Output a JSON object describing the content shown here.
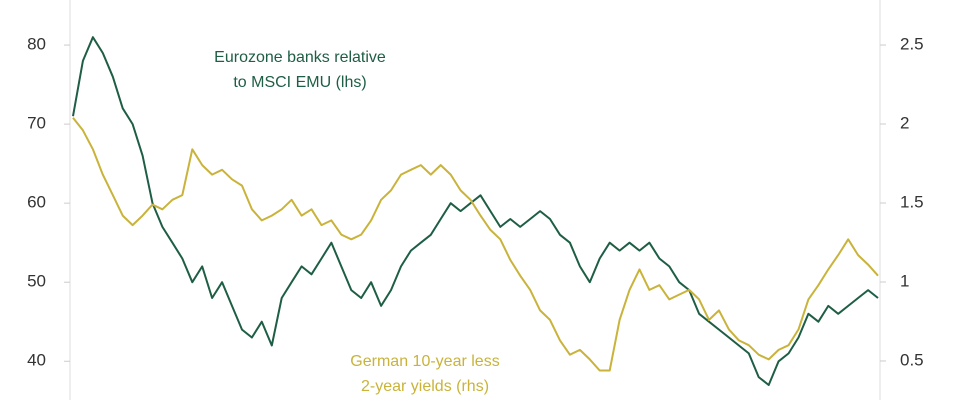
{
  "chart_data": {
    "type": "line",
    "annotations": [
      {
        "lines": [
          "Eurozone banks relative",
          "to MSCI EMU (lhs)"
        ],
        "color": "#1e5e45"
      },
      {
        "lines": [
          "German 10-year less",
          "2-year yields (rhs)"
        ],
        "color": "#c9b33a"
      }
    ],
    "ylim": [
      35.1,
      85.7
    ],
    "yticks": [
      40,
      50,
      60,
      70,
      80
    ],
    "y2lim": [
      0.253,
      2.785
    ],
    "y2ticks": [
      0.5,
      1.0,
      1.5,
      2.0,
      2.5
    ],
    "series": [
      {
        "color": "#1e5e45",
        "axis": "y",
        "values": [
          71,
          78,
          81,
          79,
          76,
          72,
          70,
          66,
          60,
          57,
          55,
          53,
          50,
          52,
          48,
          50,
          47,
          44,
          43,
          45,
          42,
          48,
          50,
          52,
          51,
          53,
          55,
          52,
          49,
          48,
          50,
          47,
          49,
          52,
          54,
          55,
          56,
          58,
          60,
          59,
          60,
          61,
          59,
          57,
          58,
          57,
          58,
          59,
          58,
          56,
          55,
          52,
          50,
          53,
          55,
          54,
          55,
          54,
          55,
          53,
          52,
          50,
          49,
          46,
          45,
          44,
          43,
          42,
          41,
          38,
          37,
          40,
          41,
          43,
          46,
          45,
          47,
          46,
          47,
          48,
          49,
          48
        ]
      },
      {
        "color": "#c9b33a",
        "axis": "y2",
        "values": [
          2.04,
          1.96,
          1.84,
          1.68,
          1.55,
          1.42,
          1.36,
          1.42,
          1.49,
          1.46,
          1.52,
          1.55,
          1.84,
          1.74,
          1.68,
          1.71,
          1.65,
          1.61,
          1.46,
          1.39,
          1.42,
          1.46,
          1.52,
          1.42,
          1.46,
          1.36,
          1.39,
          1.3,
          1.27,
          1.3,
          1.39,
          1.52,
          1.58,
          1.68,
          1.71,
          1.74,
          1.68,
          1.74,
          1.68,
          1.58,
          1.52,
          1.42,
          1.33,
          1.27,
          1.14,
          1.04,
          0.95,
          0.82,
          0.76,
          0.63,
          0.54,
          0.57,
          0.51,
          0.44,
          0.44,
          0.76,
          0.95,
          1.08,
          0.95,
          0.98,
          0.89,
          0.92,
          0.95,
          0.89,
          0.76,
          0.82,
          0.7,
          0.63,
          0.6,
          0.54,
          0.51,
          0.57,
          0.6,
          0.7,
          0.89,
          0.98,
          1.08,
          1.17,
          1.27,
          1.17,
          1.11,
          1.04
        ]
      }
    ]
  }
}
